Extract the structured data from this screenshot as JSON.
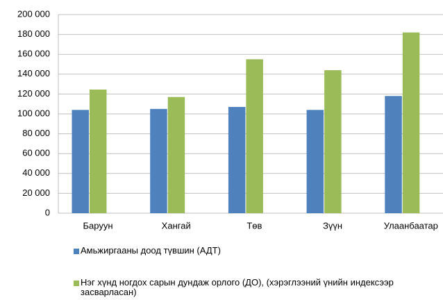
{
  "chart_data": {
    "type": "bar",
    "categories": [
      "Баруун",
      "Хангай",
      "Төв",
      "Зүүн",
      "Улаанбаатар"
    ],
    "series": [
      {
        "name": "Амьжиргааны доод түвшин (АДТ)",
        "color": "#4f81bd",
        "values": [
          104000,
          105000,
          107000,
          104000,
          118000
        ]
      },
      {
        "name": "Нэг хүнд ногдох сарын дундаж орлого (ДО), (хэрэглээний үнийн индексээр засварласан)",
        "color": "#9bbb59",
        "values": [
          124500,
          117000,
          155000,
          144000,
          182000
        ]
      }
    ],
    "ylim": [
      0,
      200000
    ],
    "yticks": [
      0,
      {
        "value": 20000,
        "label": "20 000"
      },
      {
        "value": 40000,
        "label": "40 000"
      },
      {
        "value": 60000,
        "label": "60 000"
      },
      {
        "value": 80000,
        "label": "80 000"
      },
      {
        "value": 100000,
        "label": "100 000"
      },
      {
        "value": 120000,
        "label": "120 000"
      },
      {
        "value": 140000,
        "label": "140 000"
      },
      {
        "value": 160000,
        "label": "160 000"
      },
      {
        "value": 180000,
        "label": "180 000"
      },
      {
        "value": 200000,
        "label": "200 000"
      }
    ],
    "grid": true
  }
}
